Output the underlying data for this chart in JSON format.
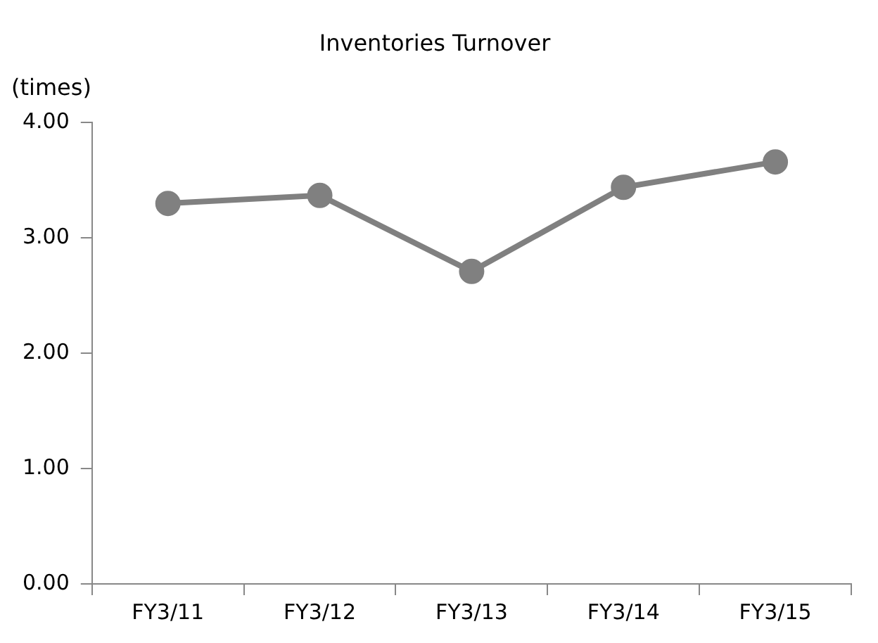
{
  "chart_data": {
    "type": "line",
    "title": "Inventories Turnover",
    "ylabel": "(times)",
    "categories": [
      "FY3/11",
      "FY3/12",
      "FY3/13",
      "FY3/14",
      "FY3/15"
    ],
    "series": [
      {
        "color": "#808080",
        "values": [
          3.3,
          3.37,
          2.71,
          3.44,
          3.66
        ]
      }
    ],
    "ylim": [
      0,
      4
    ],
    "yticks": [
      {
        "value": 0,
        "label": "0.00"
      },
      {
        "value": 1,
        "label": "1.00"
      },
      {
        "value": 2,
        "label": "2.00"
      },
      {
        "value": 3,
        "label": "3.00"
      },
      {
        "value": 4,
        "label": "4.00"
      }
    ],
    "grid": false,
    "legend": false,
    "marker": "circle",
    "line_style": "solid"
  }
}
